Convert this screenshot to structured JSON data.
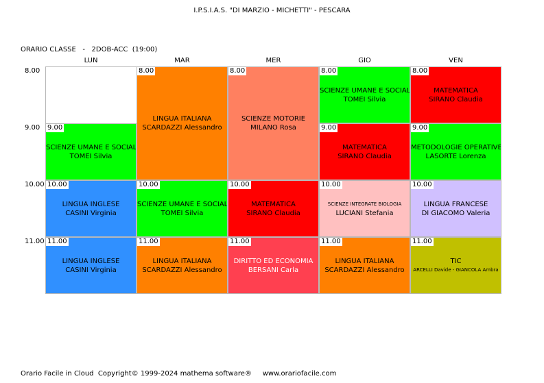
{
  "header": {
    "school": "I.P.S.I.A.S. \"DI MARZIO - MICHETTI\" - PESCARA",
    "class_line": "ORARIO CLASSE   -   2DOB-ACC  (19:00)"
  },
  "days": [
    "LUN",
    "MAR",
    "MER",
    "GIO",
    "VEN"
  ],
  "hours": [
    "8.00",
    "9.00",
    "10.00",
    "11.00"
  ],
  "lessons": [
    {
      "id": "mar-8",
      "time": "8.00",
      "subject": "LINGUA ITALIANA",
      "teacher": "SCARDAZZI Alessandro",
      "color": "#ff8000"
    },
    {
      "id": "mer-8",
      "time": "8.00",
      "subject": "SCIENZE MOTORIE",
      "teacher": "MILANO Rosa",
      "color": "#ff8060"
    },
    {
      "id": "gio-8",
      "time": "8.00",
      "subject": "SCIENZE UMANE E SOCIALI",
      "teacher": "TOMEI Silvia",
      "color": "#00ff00"
    },
    {
      "id": "ven-8",
      "time": "8.00",
      "subject": "MATEMATICA",
      "teacher": "SIRANO Claudia",
      "color": "#ff0000"
    },
    {
      "id": "lun-9",
      "time": "9.00",
      "subject": "SCIENZE UMANE E SOCIALI",
      "teacher": "TOMEI Silvia",
      "color": "#00ff00"
    },
    {
      "id": "gio-9",
      "time": "9.00",
      "subject": "MATEMATICA",
      "teacher": "SIRANO Claudia",
      "color": "#ff0000"
    },
    {
      "id": "ven-9",
      "time": "9.00",
      "subject": "METODOLOGIE OPERATIVE",
      "teacher": "LASORTE Lorenza",
      "color": "#00ff00"
    },
    {
      "id": "lun-10",
      "time": "10.00",
      "subject": "LINGUA INGLESE",
      "teacher": "CASINI Virginia",
      "color": "#3090ff"
    },
    {
      "id": "mar-10",
      "time": "10.00",
      "subject": "SCIENZE UMANE E SOCIALI",
      "teacher": "TOMEI Silvia",
      "color": "#00ff00"
    },
    {
      "id": "mer-10",
      "time": "10.00",
      "subject": "MATEMATICA",
      "teacher": "SIRANO Claudia",
      "color": "#ff0000"
    },
    {
      "id": "gio-10",
      "time": "10.00",
      "subject": "SCIENZE INTEGRATE  BIOLOGIA",
      "teacher": "LUCIANI Stefania",
      "color": "#ffc0c0",
      "small_subject": true
    },
    {
      "id": "ven-10",
      "time": "10.00",
      "subject": "LINGUA FRANCESE",
      "teacher": "DI GIACOMO Valeria",
      "color": "#d0c0ff"
    },
    {
      "id": "lun-11",
      "time": "11.00",
      "subject": "LINGUA INGLESE",
      "teacher": "CASINI Virginia",
      "color": "#3090ff"
    },
    {
      "id": "mar-11",
      "time": "11.00",
      "subject": "LINGUA ITALIANA",
      "teacher": "SCARDAZZI Alessandro",
      "color": "#ff8000"
    },
    {
      "id": "mer-11",
      "time": "11.00",
      "subject": "DIRITTO ED ECONOMIA",
      "teacher": "BERSANI Carla",
      "color": "#ff4050",
      "light_text": true
    },
    {
      "id": "gio-11",
      "time": "11.00",
      "subject": "LINGUA ITALIANA",
      "teacher": "SCARDAZZI Alessandro",
      "color": "#ff8000"
    },
    {
      "id": "ven-11",
      "time": "11.00",
      "subject": "TIC",
      "teacher": "ARCELLI Davide - GIANCOLA Ambra",
      "color": "#c0c000",
      "small_teacher": true
    }
  ],
  "footer": "Orario Facile in Cloud  Copyright© 1999-2024 mathema software®     www.orariofacile.com"
}
